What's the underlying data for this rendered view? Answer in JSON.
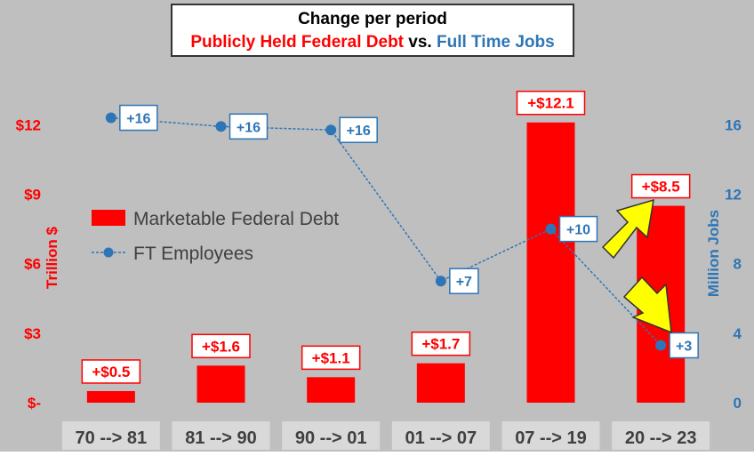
{
  "title": {
    "line1": "Change per period",
    "part_debt": "Publicly Held Federal Debt",
    "part_vs": " vs. ",
    "part_jobs": "Full Time Jobs"
  },
  "colors": {
    "debt": "#ff0000",
    "jobs": "#2e75b6",
    "background": "#bfbfbf",
    "arrow": "#ffff00"
  },
  "chart_data": {
    "type": "bar",
    "categories": [
      "70 --> 81",
      "81 --> 90",
      "90 --> 01",
      "01 --> 07",
      "07 --> 19",
      "20 --> 23"
    ],
    "series": [
      {
        "name": "Marketable Federal Debt",
        "kind": "bar",
        "axis": "left",
        "values": [
          0.5,
          1.6,
          1.1,
          1.7,
          12.1,
          8.5
        ],
        "labels": [
          "+$0.5",
          "+$1.6",
          "+$1.1",
          "+$1.7",
          "+$12.1",
          "+$8.5"
        ]
      },
      {
        "name": "FT Employees",
        "kind": "line",
        "axis": "right",
        "values": [
          16.4,
          15.9,
          15.7,
          7.0,
          10.0,
          3.3
        ],
        "labels": [
          "+16",
          "+16",
          "+16",
          "+7",
          "+10",
          "+3"
        ]
      }
    ],
    "y_left": {
      "label": "Trillion $",
      "ticks": [
        0,
        3,
        6,
        9,
        12
      ],
      "tick_labels": [
        "$-",
        "$3",
        "$6",
        "$9",
        "$12"
      ],
      "range": [
        0,
        14.7
      ]
    },
    "y_right": {
      "label": "Million Jobs",
      "ticks": [
        0,
        4,
        8,
        12,
        16
      ],
      "tick_labels": [
        "0",
        "4",
        "8",
        "12",
        "16"
      ],
      "range": [
        0,
        19.6
      ]
    },
    "legend_position": "center-left",
    "grid": false
  }
}
